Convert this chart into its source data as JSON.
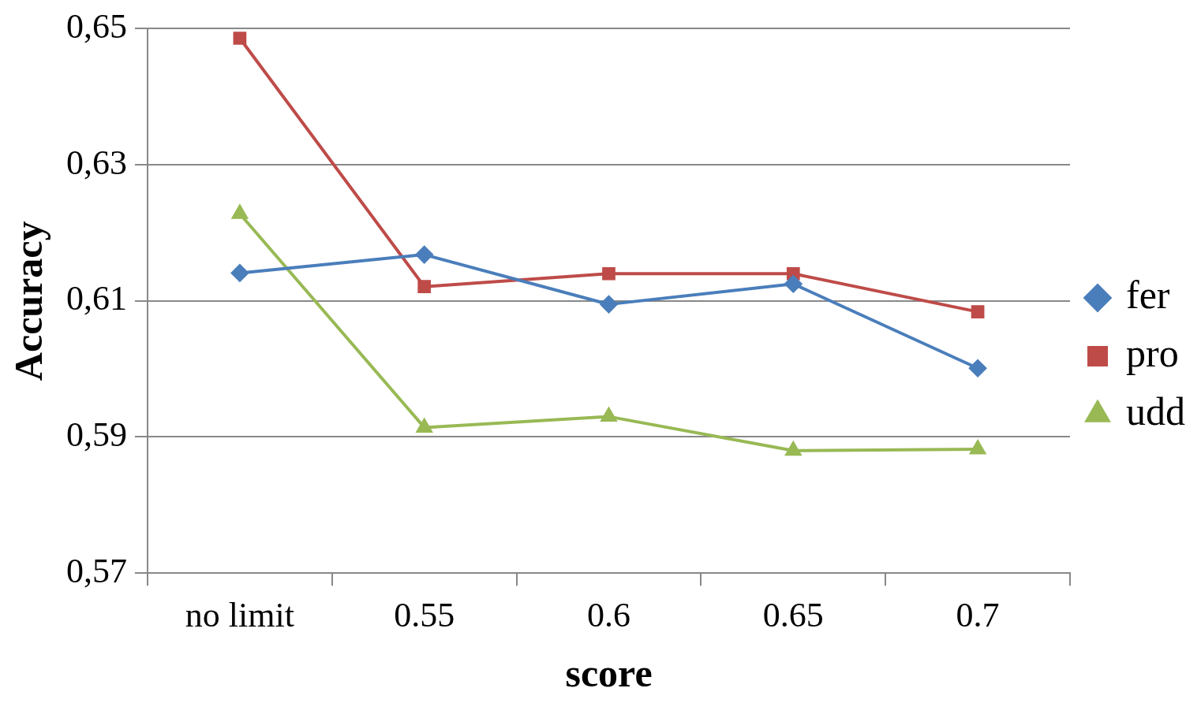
{
  "chart_data": {
    "type": "line",
    "xlabel": "score",
    "ylabel": "Accuracy",
    "categories": [
      "no limit",
      "0.55",
      "0.6",
      "0.65",
      "0.7"
    ],
    "series": [
      {
        "name": "fer",
        "color": "#4a7ebb",
        "marker": "diamond",
        "values": [
          0.6141,
          0.6168,
          0.6095,
          0.6125,
          0.6001
        ]
      },
      {
        "name": "pro",
        "color": "#be4b48",
        "marker": "square",
        "values": [
          0.6486,
          0.6121,
          0.614,
          0.614,
          0.6084
        ]
      },
      {
        "name": "udd",
        "color": "#98b954",
        "marker": "triangle",
        "values": [
          0.6228,
          0.5914,
          0.593,
          0.588,
          0.5882
        ]
      }
    ],
    "ylim": [
      0.57,
      0.65
    ],
    "yticks": [
      {
        "value": 0.57,
        "label": "0,57"
      },
      {
        "value": 0.59,
        "label": "0,59"
      },
      {
        "value": 0.61,
        "label": "0,61"
      },
      {
        "value": 0.63,
        "label": "0,63"
      },
      {
        "value": 0.65,
        "label": "0,65"
      }
    ],
    "grid": "y",
    "legend": "right",
    "line_style": "solid"
  }
}
